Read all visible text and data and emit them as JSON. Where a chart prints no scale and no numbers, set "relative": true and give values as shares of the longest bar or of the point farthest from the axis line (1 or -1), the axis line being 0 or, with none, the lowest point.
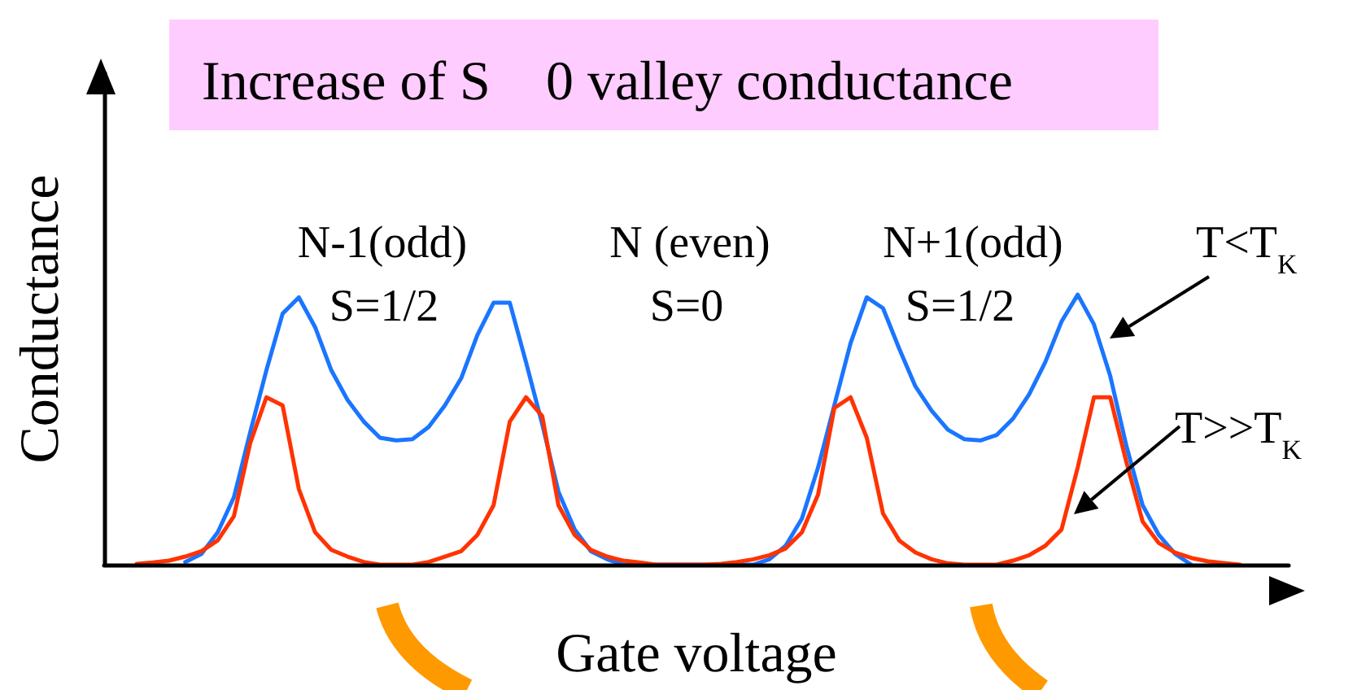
{
  "chart_data": {
    "type": "line",
    "title": "Increase of S    0 valley conductance",
    "xlabel": "Gate voltage",
    "ylabel": "Conductance",
    "relative": true,
    "marker": "none",
    "annotations": [
      "N-1(odd)",
      "N (even)",
      "N+1(odd)",
      "S=1/2",
      "S=0",
      "S=1/2"
    ],
    "categories": [
      null,
      null,
      null,
      null,
      null,
      null,
      null,
      null,
      null,
      null,
      null,
      null,
      null,
      null,
      null,
      null,
      null,
      null,
      null,
      null,
      null,
      null,
      null,
      null,
      null,
      null,
      null,
      null,
      null,
      null,
      null,
      null,
      null,
      null,
      null,
      null,
      null,
      null,
      null,
      null,
      null,
      null,
      null,
      null,
      null,
      null,
      null,
      null,
      null,
      null,
      null,
      null,
      null,
      null,
      null,
      null,
      null,
      null,
      null,
      null,
      null,
      null,
      null,
      null,
      null,
      null,
      null,
      null,
      null,
      null,
      null,
      null,
      null,
      null
    ],
    "series": [
      {
        "name": "T<T$_{K}$",
        "color": "#1a75ff",
        "values": [
          null,
          null,
          null,
          null,
          null,
          0.01,
          0.04,
          0.12,
          0.25,
          0.49,
          0.72,
          0.93,
          0.99,
          0.88,
          0.72,
          0.61,
          0.53,
          0.47,
          0.46,
          0.465,
          0.51,
          0.59,
          0.69,
          0.85,
          0.97,
          0.97,
          0.75,
          0.52,
          0.27,
          0.13,
          0.05,
          0.02,
          0,
          null,
          null,
          null,
          null,
          null,
          null,
          null,
          0,
          0.02,
          0.07,
          0.17,
          0.36,
          0.59,
          0.82,
          0.99,
          0.95,
          0.8,
          0.66,
          0.57,
          0.5,
          0.465,
          0.46,
          0.48,
          0.54,
          0.63,
          0.75,
          0.9,
          1.0,
          0.89,
          0.7,
          0.44,
          0.22,
          0.11,
          0.04,
          0,
          null,
          null,
          null,
          null,
          null,
          null
        ]
      },
      {
        "name": "T>>T$_{K}$",
        "color": "#ff3300",
        "values": [
          null,
          null,
          0.003,
          0.008,
          0.015,
          0.03,
          0.05,
          0.09,
          0.18,
          0.45,
          0.62,
          0.59,
          0.28,
          0.12,
          0.055,
          0.03,
          0.01,
          0,
          0,
          0,
          0.01,
          0.03,
          0.05,
          0.11,
          0.22,
          0.53,
          0.62,
          0.55,
          0.22,
          0.11,
          0.055,
          0.03,
          0.015,
          0.008,
          0,
          null,
          null,
          0,
          0.003,
          0.01,
          0.02,
          0.035,
          0.06,
          0.12,
          0.26,
          0.58,
          0.62,
          0.47,
          0.19,
          0.09,
          0.045,
          0.02,
          0.005,
          0,
          0,
          0,
          0.015,
          0.035,
          0.07,
          0.13,
          0.36,
          0.62,
          0.62,
          0.38,
          0.16,
          0.08,
          0.045,
          0.025,
          0.013,
          0.006,
          0,
          null,
          null,
          null
        ]
      }
    ]
  }
}
